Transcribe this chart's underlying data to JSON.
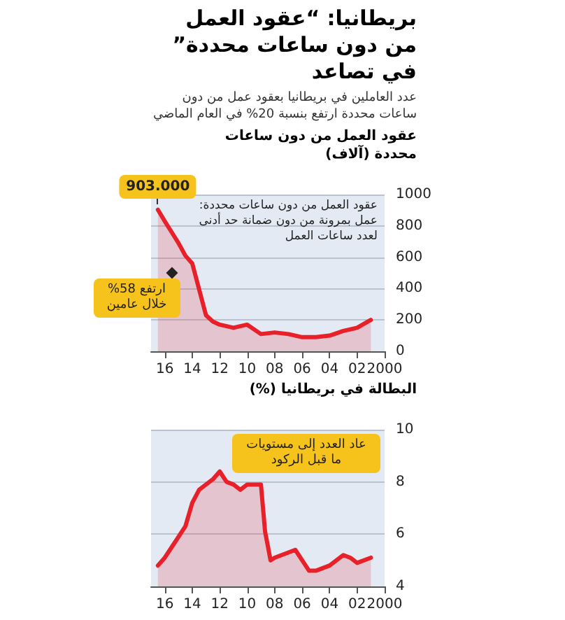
{
  "chart_data": [
    {
      "type": "area",
      "title": "بريطانيا: “عقود العمل من دون ساعات محددة” في تصاعد",
      "subtitle": "عدد العاملين في بريطانيا بعقود عمل من دون ساعات محددة ارتفع بنسبة 20% في العام الماضي",
      "ylabel": "عقود العمل من دون ساعات محددة (آلاف)",
      "x": [
        2001,
        2002,
        2003,
        2004,
        2005,
        2006,
        2007,
        2008,
        2009,
        2010,
        2011,
        2012,
        2012.5,
        2013,
        2014,
        2014.5,
        2015,
        2015.5,
        2016,
        2016.5
      ],
      "series": [
        {
          "color": "#e8202a",
          "values": [
            200,
            150,
            130,
            100,
            90,
            90,
            110,
            120,
            110,
            170,
            150,
            170,
            190,
            230,
            560,
            610,
            690,
            760,
            830,
            903
          ]
        }
      ],
      "xlim": [
        2017,
        2000
      ],
      "xticks": [
        {
          "value": 2016,
          "label": "16"
        },
        {
          "value": 2014,
          "label": "14"
        },
        {
          "value": 2012,
          "label": "12"
        },
        {
          "value": 2010,
          "label": "10"
        },
        {
          "value": 2008,
          "label": "08"
        },
        {
          "value": 2006,
          "label": "06"
        },
        {
          "value": 2004,
          "label": "04"
        },
        {
          "value": 2002,
          "label": "02"
        },
        2000
      ],
      "ylim": [
        0,
        1000
      ],
      "yticks": [
        0,
        200,
        400,
        600,
        800,
        1000
      ],
      "grid": "y",
      "marker": "none",
      "annotations": [
        {
          "text": "903.000",
          "x": 2016.5,
          "y": 903
        },
        "عقود العمل من دون ساعات محددة: عمل بمرونة من دون ضمانة حد أدنى لعدد ساعات العمل",
        {
          "text": "ارتفع 58% خلال عامين",
          "x": 2015.5,
          "y": 500
        }
      ]
    },
    {
      "type": "area",
      "ylabel": "البطالة في بريطانيا (%)",
      "x": [
        2001,
        2002,
        2002.5,
        2003,
        2004,
        2004.5,
        2005,
        2005.5,
        2006,
        2006.5,
        2007,
        2008,
        2008.3,
        2008.7,
        2009,
        2010,
        2010.5,
        2011,
        2011.5,
        2012,
        2012.5,
        2013,
        2013.5,
        2014,
        2014.5,
        2015,
        2015.5,
        2016,
        2016.5
      ],
      "series": [
        {
          "color": "#e8202a",
          "values": [
            5.1,
            4.9,
            5.1,
            5.2,
            4.8,
            4.7,
            4.6,
            4.6,
            5.0,
            5.4,
            5.3,
            5.1,
            5.0,
            6.1,
            7.9,
            7.9,
            7.7,
            7.9,
            8.0,
            8.4,
            8.1,
            7.9,
            7.7,
            7.2,
            6.3,
            5.9,
            5.5,
            5.1,
            4.8
          ]
        }
      ],
      "xlim": [
        2017,
        2000
      ],
      "xticks": [
        {
          "value": 2016,
          "label": "16"
        },
        {
          "value": 2014,
          "label": "14"
        },
        {
          "value": 2012,
          "label": "12"
        },
        {
          "value": 2010,
          "label": "10"
        },
        {
          "value": 2008,
          "label": "08"
        },
        {
          "value": 2006,
          "label": "06"
        },
        {
          "value": 2004,
          "label": "04"
        },
        {
          "value": 2002,
          "label": "02"
        },
        2000
      ],
      "ylim": [
        4,
        10
      ],
      "yticks": [
        4,
        6,
        8,
        10
      ],
      "grid": "y",
      "marker": "none",
      "annotations": [
        "عاد العدد إلى مستويات ما قبل الركود"
      ]
    }
  ]
}
